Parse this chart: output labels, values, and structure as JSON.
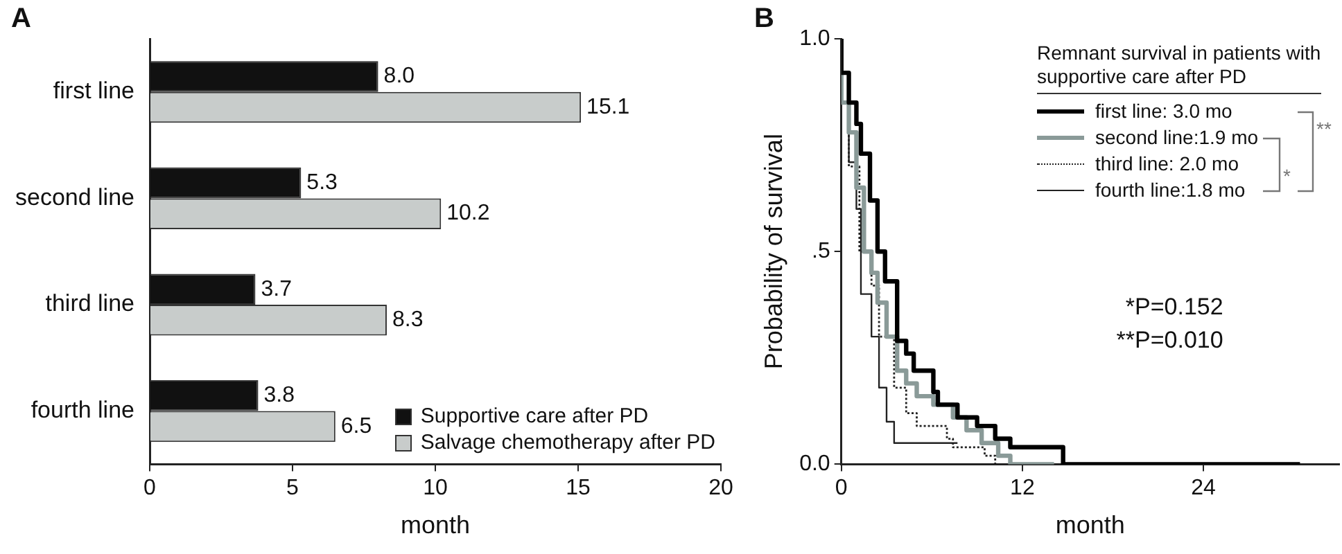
{
  "chart_data": [
    {
      "type": "bar",
      "title": "A",
      "orientation": "horizontal",
      "xlabel": "month",
      "categories": [
        "first line",
        "second line",
        "third line",
        "fourth line"
      ],
      "series": [
        {
          "name": "Supportive care after PD",
          "color": "#111111",
          "values": [
            8.0,
            5.3,
            3.7,
            3.8
          ],
          "value_labels": [
            "8.0",
            "5.3",
            "3.7",
            "3.8"
          ]
        },
        {
          "name": "Salvage chemotherapy after PD",
          "color": "#c8cccb",
          "values": [
            15.1,
            10.2,
            8.3,
            6.5
          ],
          "value_labels": [
            "15.1",
            "10.2",
            "8.3",
            "6.5"
          ]
        }
      ],
      "xlim": [
        0,
        20
      ],
      "xticks": [
        0,
        5,
        10,
        15,
        20
      ],
      "legend": "bottom right"
    },
    {
      "type": "step",
      "title": "B",
      "xlabel": "month",
      "ylabel": "Probability of survival",
      "legend_title": "Remnant survival in patients with supportive care after PD",
      "legend": "top right",
      "series": [
        {
          "name": "first line: 3.0 mo",
          "color": "#000000",
          "line_style": "solid",
          "x": [
            0,
            0.5,
            1,
            1.3,
            1.9,
            2.4,
            2.9,
            3.7,
            4.3,
            4.8,
            6.1,
            6.4,
            7.7,
            9,
            10.2,
            11.2,
            14.7,
            30.4
          ],
          "values": [
            1,
            0.92,
            0.85,
            0.8,
            0.73,
            0.62,
            0.5,
            0.43,
            0.29,
            0.26,
            0.22,
            0.17,
            0.14,
            0.11,
            0.09,
            0.06,
            0.04,
            0
          ]
        },
        {
          "name": "second line:1.9 mo",
          "color": "#8a9a98",
          "line_style": "solid",
          "x": [
            0,
            0.5,
            1,
            1.5,
            2,
            2.4,
            3,
            3.7,
            4.3,
            5,
            6.1,
            7.4,
            8.3,
            9.3,
            10.4,
            11.2,
            14.1
          ],
          "values": [
            1,
            0.85,
            0.78,
            0.65,
            0.5,
            0.45,
            0.38,
            0.3,
            0.22,
            0.19,
            0.16,
            0.14,
            0.11,
            0.08,
            0.05,
            0.02,
            0
          ]
        },
        {
          "name": "third line: 2.0 mo",
          "color": "#222222",
          "line_style": "dotted",
          "x": [
            0,
            0.5,
            1.2,
            2,
            2.5,
            3.5,
            4.3,
            5,
            7,
            7.4,
            9.5,
            10.2,
            11.2
          ],
          "values": [
            1,
            0.85,
            0.7,
            0.5,
            0.42,
            0.3,
            0.18,
            0.12,
            0.09,
            0.06,
            0.04,
            0.02,
            0
          ]
        },
        {
          "name": "fourth line:1.8 mo",
          "color": "#222222",
          "line_style": "solid",
          "x": [
            0,
            0.5,
            1,
            1.3,
            2,
            2.5,
            3,
            3.5,
            3.8,
            7.7
          ],
          "values": [
            1,
            0.85,
            0.71,
            0.6,
            0.4,
            0.3,
            0.18,
            0.1,
            0.05,
            0.05
          ]
        }
      ],
      "xlim": [
        0,
        33
      ],
      "xticks": [
        0,
        12,
        24
      ],
      "ylim": [
        0,
        1
      ],
      "yticks": [
        {
          "value": 0,
          "label": "0.0"
        },
        {
          "value": 0.5,
          "label": ".5"
        },
        {
          "value": 1,
          "label": "1.0"
        }
      ],
      "annotations": [
        "*",
        "**",
        "*P=0.152",
        "**P=0.010"
      ]
    }
  ]
}
